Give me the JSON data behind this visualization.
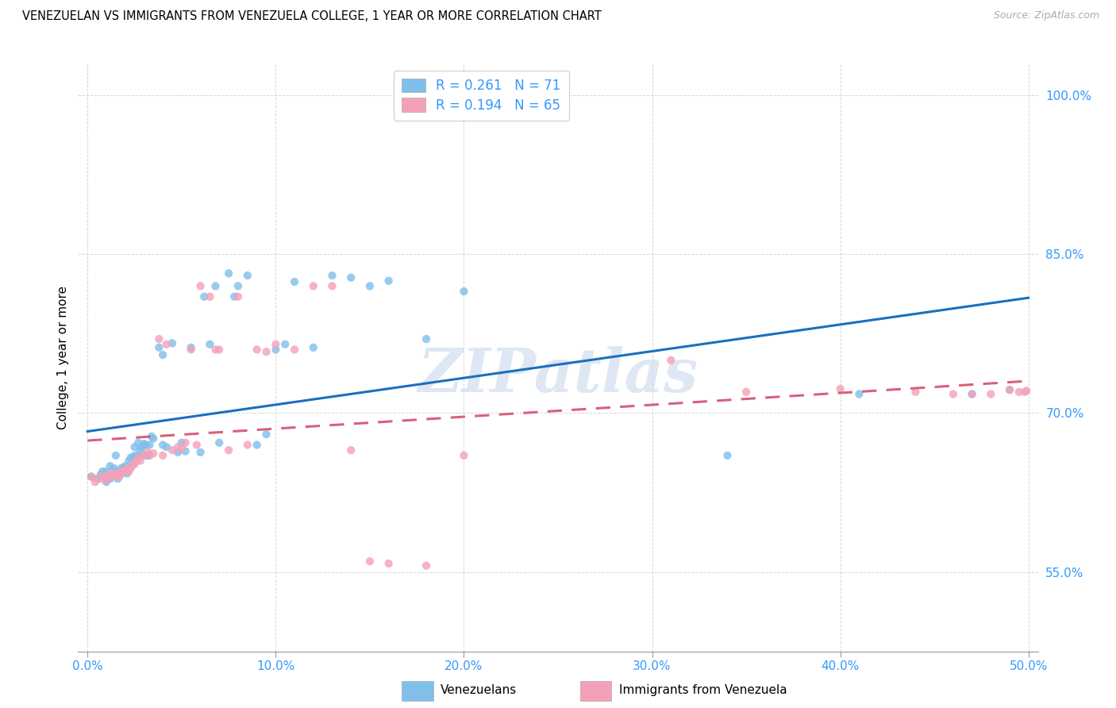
{
  "title": "VENEZUELAN VS IMMIGRANTS FROM VENEZUELA COLLEGE, 1 YEAR OR MORE CORRELATION CHART",
  "source": "Source: ZipAtlas.com",
  "xlabel_ticks": [
    "0.0%",
    "10.0%",
    "20.0%",
    "30.0%",
    "40.0%",
    "50.0%"
  ],
  "xlabel_vals": [
    0.0,
    0.1,
    0.2,
    0.3,
    0.4,
    0.5
  ],
  "ylabel_ticks": [
    "55.0%",
    "70.0%",
    "85.0%",
    "100.0%"
  ],
  "ylabel_vals": [
    0.55,
    0.7,
    0.85,
    1.0
  ],
  "xlim": [
    -0.005,
    0.505
  ],
  "ylim": [
    0.475,
    1.03
  ],
  "legend_label1": "Venezuelans",
  "legend_label2": "Immigrants from Venezuela",
  "R1": 0.261,
  "N1": 71,
  "R2": 0.194,
  "N2": 65,
  "color1": "#7fbfea",
  "color2": "#f4a0b8",
  "line_color1": "#1a6fbe",
  "line_color2": "#d9607a",
  "watermark": "ZIPatlas",
  "ylabel": "College, 1 year or more",
  "blue_scatter_x": [
    0.002,
    0.005,
    0.007,
    0.008,
    0.01,
    0.01,
    0.012,
    0.012,
    0.013,
    0.014,
    0.015,
    0.015,
    0.015,
    0.016,
    0.017,
    0.018,
    0.018,
    0.019,
    0.02,
    0.021,
    0.022,
    0.023,
    0.024,
    0.025,
    0.025,
    0.026,
    0.027,
    0.027,
    0.028,
    0.029,
    0.03,
    0.031,
    0.031,
    0.032,
    0.033,
    0.034,
    0.035,
    0.038,
    0.04,
    0.04,
    0.042,
    0.045,
    0.048,
    0.05,
    0.052,
    0.055,
    0.06,
    0.062,
    0.065,
    0.068,
    0.07,
    0.075,
    0.078,
    0.08,
    0.085,
    0.09,
    0.095,
    0.1,
    0.105,
    0.11,
    0.12,
    0.13,
    0.14,
    0.15,
    0.16,
    0.18,
    0.2,
    0.34,
    0.41,
    0.47,
    0.49
  ],
  "blue_scatter_y": [
    0.64,
    0.638,
    0.642,
    0.645,
    0.635,
    0.645,
    0.638,
    0.65,
    0.64,
    0.648,
    0.642,
    0.645,
    0.66,
    0.638,
    0.643,
    0.643,
    0.648,
    0.648,
    0.65,
    0.643,
    0.655,
    0.658,
    0.658,
    0.66,
    0.668,
    0.658,
    0.66,
    0.672,
    0.665,
    0.668,
    0.671,
    0.66,
    0.67,
    0.66,
    0.67,
    0.678,
    0.676,
    0.762,
    0.67,
    0.755,
    0.668,
    0.766,
    0.663,
    0.672,
    0.664,
    0.762,
    0.663,
    0.81,
    0.765,
    0.82,
    0.672,
    0.832,
    0.81,
    0.82,
    0.83,
    0.67,
    0.68,
    0.76,
    0.765,
    0.824,
    0.762,
    0.83,
    0.828,
    0.82,
    0.825,
    0.77,
    0.815,
    0.66,
    0.718,
    0.718,
    0.722
  ],
  "pink_scatter_x": [
    0.002,
    0.004,
    0.007,
    0.008,
    0.01,
    0.011,
    0.012,
    0.013,
    0.014,
    0.015,
    0.016,
    0.017,
    0.018,
    0.019,
    0.02,
    0.021,
    0.022,
    0.023,
    0.024,
    0.025,
    0.026,
    0.027,
    0.028,
    0.03,
    0.032,
    0.033,
    0.035,
    0.038,
    0.04,
    0.042,
    0.045,
    0.048,
    0.05,
    0.052,
    0.055,
    0.058,
    0.06,
    0.065,
    0.068,
    0.07,
    0.075,
    0.08,
    0.085,
    0.09,
    0.095,
    0.1,
    0.11,
    0.12,
    0.13,
    0.14,
    0.15,
    0.16,
    0.18,
    0.2,
    0.31,
    0.35,
    0.4,
    0.44,
    0.46,
    0.47,
    0.48,
    0.49,
    0.495,
    0.498,
    0.499
  ],
  "pink_scatter_y": [
    0.64,
    0.635,
    0.638,
    0.641,
    0.636,
    0.641,
    0.64,
    0.643,
    0.642,
    0.64,
    0.643,
    0.64,
    0.645,
    0.645,
    0.645,
    0.648,
    0.645,
    0.648,
    0.651,
    0.652,
    0.655,
    0.658,
    0.655,
    0.66,
    0.663,
    0.66,
    0.662,
    0.77,
    0.66,
    0.765,
    0.665,
    0.668,
    0.666,
    0.672,
    0.76,
    0.67,
    0.82,
    0.81,
    0.76,
    0.76,
    0.665,
    0.81,
    0.67,
    0.76,
    0.758,
    0.765,
    0.76,
    0.82,
    0.82,
    0.665,
    0.56,
    0.558,
    0.556,
    0.66,
    0.75,
    0.72,
    0.723,
    0.72,
    0.718,
    0.718,
    0.718,
    0.722,
    0.72,
    0.72,
    0.721
  ]
}
